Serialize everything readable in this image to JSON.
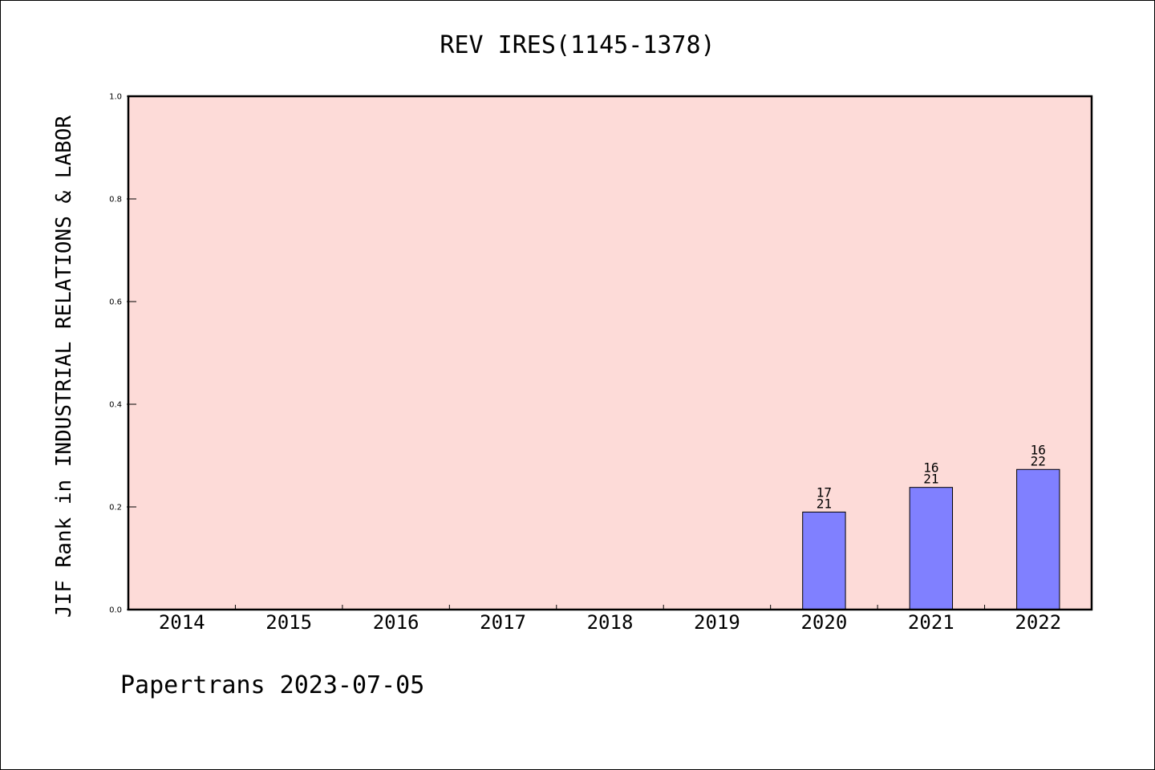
{
  "chart_data": {
    "type": "bar",
    "title": "REV IRES(1145-1378)",
    "ylabel": "JIF Rank in INDUSTRIAL RELATIONS & LABOR",
    "xlabel": "",
    "categories": [
      "2014",
      "2015",
      "2016",
      "2017",
      "2018",
      "2019",
      "2020",
      "2021",
      "2022"
    ],
    "values": [
      null,
      null,
      null,
      null,
      null,
      null,
      0.19,
      0.238,
      0.273
    ],
    "bar_labels": [
      null,
      null,
      null,
      null,
      null,
      null,
      [
        "17",
        "21"
      ],
      [
        "16",
        "21"
      ],
      [
        "16",
        "22"
      ]
    ],
    "ylim": [
      0,
      1.0
    ],
    "yticks": [
      "0.0",
      "0.2",
      "0.4",
      "0.6",
      "0.8",
      "1.0"
    ],
    "grid": false,
    "colors": {
      "plot_background": "#fddbd8",
      "bar_fill": "#8080ff",
      "bar_stroke": "#000000"
    }
  },
  "footer": "Papertrans 2023-07-05"
}
